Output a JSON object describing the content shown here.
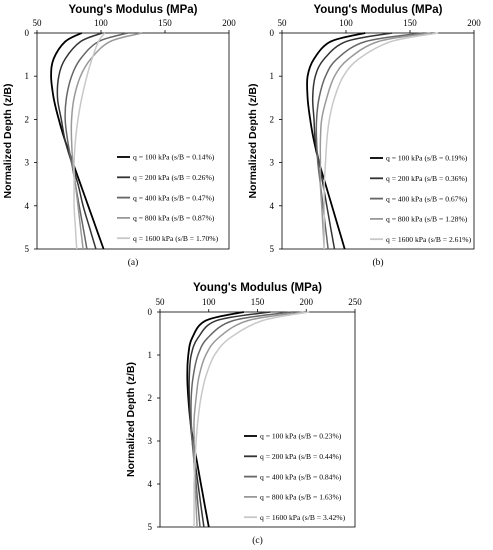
{
  "chart_data": [
    {
      "type": "line",
      "panel_label": "(a)",
      "title": "Young's Modulus (MPa)",
      "ylabel": "Normalized Depth (z/B)",
      "xlabel_position": "top",
      "xlim": [
        50,
        200
      ],
      "ylim": [
        0,
        5
      ],
      "y_inverted": true,
      "x_ticks": [
        "50",
        "100",
        "150",
        "200"
      ],
      "y_ticks": [
        "0",
        "1",
        "2",
        "3",
        "4",
        "5"
      ],
      "grid": false,
      "legend_position": "bottom-right",
      "series": [
        {
          "name": "q = 100 kPa (s/B = 0.14%)",
          "color": "#000000",
          "width": 1.8,
          "points": [
            [
              85,
              0
            ],
            [
              72,
              0.2
            ],
            [
              63,
              0.6
            ],
            [
              61,
              1.0
            ],
            [
              63,
              1.5
            ],
            [
              67,
              2.0
            ],
            [
              72,
              2.5
            ],
            [
              78,
              3.0
            ],
            [
              84,
              3.5
            ],
            [
              90,
              4.0
            ],
            [
              96,
              4.5
            ],
            [
              102,
              5.0
            ]
          ]
        },
        {
          "name": "q = 200 kPa (s/B = 0.26%)",
          "color": "#333333",
          "width": 1.5,
          "points": [
            [
              101,
              0
            ],
            [
              84,
              0.2
            ],
            [
              72,
              0.6
            ],
            [
              67,
              1.0
            ],
            [
              66,
              1.5
            ],
            [
              69,
              2.0
            ],
            [
              72,
              2.5
            ],
            [
              77,
              3.0
            ],
            [
              82,
              3.5
            ],
            [
              86,
              4.0
            ],
            [
              91,
              4.5
            ],
            [
              96,
              5.0
            ]
          ]
        },
        {
          "name": "q = 400 kPa (s/B = 0.47%)",
          "color": "#666666",
          "width": 1.5,
          "points": [
            [
              121,
              0
            ],
            [
              98,
              0.2
            ],
            [
              84,
              0.6
            ],
            [
              77,
              1.0
            ],
            [
              73,
              1.5
            ],
            [
              72,
              2.0
            ],
            [
              74,
              2.5
            ],
            [
              77,
              3.0
            ],
            [
              80,
              3.5
            ],
            [
              83,
              4.0
            ],
            [
              86,
              4.5
            ],
            [
              89,
              5.0
            ]
          ]
        },
        {
          "name": "q = 800 kPa (s/B = 0.87%)",
          "color": "#999999",
          "width": 1.5,
          "points": [
            [
              132,
              0
            ],
            [
              107,
              0.2
            ],
            [
              92,
              0.6
            ],
            [
              84,
              1.0
            ],
            [
              79,
              1.5
            ],
            [
              77,
              2.0
            ],
            [
              77,
              2.5
            ],
            [
              78,
              3.0
            ],
            [
              80,
              3.5
            ],
            [
              82,
              4.0
            ],
            [
              84,
              4.5
            ],
            [
              86,
              5.0
            ]
          ]
        },
        {
          "name": "q = 1600 kPa (s/B = 1.70%)",
          "color": "#c8c8c8",
          "width": 1.5,
          "points": [
            [
              103,
              0
            ],
            [
              98,
              0.2
            ],
            [
              93,
              0.6
            ],
            [
              89,
              1.0
            ],
            [
              85,
              1.5
            ],
            [
              82,
              2.0
            ],
            [
              80,
              2.5
            ],
            [
              79,
              3.0
            ],
            [
              79,
              3.5
            ],
            [
              79,
              4.0
            ],
            [
              80,
              4.5
            ],
            [
              81,
              5.0
            ]
          ]
        }
      ]
    },
    {
      "type": "line",
      "panel_label": "(b)",
      "title": "Young's Modulus (MPa)",
      "ylabel": "Normalized Depth (z/B)",
      "xlabel_position": "top",
      "xlim": [
        50,
        200
      ],
      "ylim": [
        0,
        5
      ],
      "y_inverted": true,
      "x_ticks": [
        "50",
        "100",
        "150",
        "200"
      ],
      "y_ticks": [
        "0",
        "1",
        "2",
        "3",
        "4",
        "5"
      ],
      "grid": false,
      "legend_position": "bottom-right",
      "series": [
        {
          "name": "q = 100 kPa (s/B = 0.19%)",
          "color": "#000000",
          "width": 1.8,
          "points": [
            [
              115,
              0
            ],
            [
              88,
              0.2
            ],
            [
              75,
              0.6
            ],
            [
              70,
              1.0
            ],
            [
              70,
              1.5
            ],
            [
              72,
              2.0
            ],
            [
              75,
              2.5
            ],
            [
              79,
              3.0
            ],
            [
              84,
              3.5
            ],
            [
              89,
              4.0
            ],
            [
              94,
              4.5
            ],
            [
              99,
              5.0
            ]
          ]
        },
        {
          "name": "q = 200 kPa (s/B = 0.36%)",
          "color": "#333333",
          "width": 1.5,
          "points": [
            [
              136,
              0
            ],
            [
              100,
              0.2
            ],
            [
              83,
              0.6
            ],
            [
              76,
              1.0
            ],
            [
              74,
              1.5
            ],
            [
              75,
              2.0
            ],
            [
              76,
              2.5
            ],
            [
              79,
              3.0
            ],
            [
              82,
              3.5
            ],
            [
              85,
              4.0
            ],
            [
              88,
              4.5
            ],
            [
              91,
              5.0
            ]
          ]
        },
        {
          "name": "q = 400 kPa (s/B = 0.67%)",
          "color": "#666666",
          "width": 1.5,
          "points": [
            [
              160,
              0
            ],
            [
              115,
              0.2
            ],
            [
              93,
              0.6
            ],
            [
              84,
              1.0
            ],
            [
              79,
              1.5
            ],
            [
              77,
              2.0
            ],
            [
              77,
              2.5
            ],
            [
              78,
              3.0
            ],
            [
              80,
              3.5
            ],
            [
              82,
              4.0
            ],
            [
              84,
              4.5
            ],
            [
              86,
              5.0
            ]
          ]
        },
        {
          "name": "q = 800 kPa (s/B = 1.28%)",
          "color": "#999999",
          "width": 1.5,
          "points": [
            [
              166,
              0
            ],
            [
              125,
              0.2
            ],
            [
              102,
              0.6
            ],
            [
              91,
              1.0
            ],
            [
              85,
              1.5
            ],
            [
              81,
              2.0
            ],
            [
              80,
              2.5
            ],
            [
              80,
              3.0
            ],
            [
              80,
              3.5
            ],
            [
              81,
              4.0
            ],
            [
              82,
              4.5
            ],
            [
              83,
              5.0
            ]
          ]
        },
        {
          "name": "q = 1600 kPa (s/B = 2.61%)",
          "color": "#c8c8c8",
          "width": 1.5,
          "points": [
            [
              172,
              0
            ],
            [
              135,
              0.2
            ],
            [
              110,
              0.6
            ],
            [
              98,
              1.0
            ],
            [
              91,
              1.5
            ],
            [
              87,
              2.0
            ],
            [
              85,
              2.5
            ],
            [
              84,
              3.0
            ],
            [
              83,
              3.5
            ],
            [
              83,
              4.0
            ],
            [
              83,
              4.5
            ],
            [
              83,
              5.0
            ]
          ]
        }
      ]
    },
    {
      "type": "line",
      "panel_label": "(c)",
      "title": "Young's Modulus (MPa)",
      "ylabel": "Normalized Depth (z/B)",
      "xlabel_position": "top",
      "xlim": [
        50,
        250
      ],
      "ylim": [
        0,
        5
      ],
      "y_inverted": true,
      "x_ticks": [
        "50",
        "100",
        "150",
        "200",
        "250"
      ],
      "y_ticks": [
        "0",
        "1",
        "2",
        "3",
        "4",
        "5"
      ],
      "grid": false,
      "legend_position": "bottom-right",
      "series": [
        {
          "name": "q = 100 kPa (s/B = 0.23%)",
          "color": "#000000",
          "width": 1.8,
          "points": [
            [
              136,
              0
            ],
            [
              97,
              0.2
            ],
            [
              83,
              0.6
            ],
            [
              79,
              1.0
            ],
            [
              78,
              1.5
            ],
            [
              79,
              2.0
            ],
            [
              81,
              2.5
            ],
            [
              84,
              3.0
            ],
            [
              88,
              3.5
            ],
            [
              92,
              4.0
            ],
            [
              96,
              4.5
            ],
            [
              100,
              5.0
            ]
          ]
        },
        {
          "name": "q = 200 kPa (s/B = 0.44%)",
          "color": "#333333",
          "width": 1.5,
          "points": [
            [
              163,
              0
            ],
            [
              108,
              0.2
            ],
            [
              89,
              0.6
            ],
            [
              82,
              1.0
            ],
            [
              80,
              1.5
            ],
            [
              80,
              2.0
            ],
            [
              81,
              2.5
            ],
            [
              83,
              3.0
            ],
            [
              86,
              3.5
            ],
            [
              89,
              4.0
            ],
            [
              92,
              4.5
            ],
            [
              95,
              5.0
            ]
          ]
        },
        {
          "name": "q = 400 kPa (s/B = 0.84%)",
          "color": "#666666",
          "width": 1.5,
          "points": [
            [
              185,
              0
            ],
            [
              125,
              0.2
            ],
            [
              99,
              0.6
            ],
            [
              89,
              1.0
            ],
            [
              84,
              1.5
            ],
            [
              82,
              2.0
            ],
            [
              82,
              2.5
            ],
            [
              83,
              3.0
            ],
            [
              85,
              3.5
            ],
            [
              87,
              4.0
            ],
            [
              89,
              4.5
            ],
            [
              91,
              5.0
            ]
          ]
        },
        {
          "name": "q = 800 kPa (s/B = 1.63%)",
          "color": "#999999",
          "width": 1.5,
          "points": [
            [
              198,
              0
            ],
            [
              140,
              0.2
            ],
            [
              110,
              0.6
            ],
            [
              97,
              1.0
            ],
            [
              90,
              1.5
            ],
            [
              87,
              2.0
            ],
            [
              85,
              2.5
            ],
            [
              85,
              3.0
            ],
            [
              85,
              3.5
            ],
            [
              86,
              4.0
            ],
            [
              87,
              4.5
            ],
            [
              88,
              5.0
            ]
          ]
        },
        {
          "name": "q = 1600 kPa (s/B = 3.42%)",
          "color": "#c8c8c8",
          "width": 1.5,
          "points": [
            [
              203,
              0
            ],
            [
              155,
              0.2
            ],
            [
              122,
              0.6
            ],
            [
              106,
              1.0
            ],
            [
              97,
              1.5
            ],
            [
              92,
              2.0
            ],
            [
              89,
              2.5
            ],
            [
              87,
              3.0
            ],
            [
              86,
              3.5
            ],
            [
              85,
              4.0
            ],
            [
              85,
              4.5
            ],
            [
              85,
              5.0
            ]
          ]
        }
      ]
    }
  ]
}
